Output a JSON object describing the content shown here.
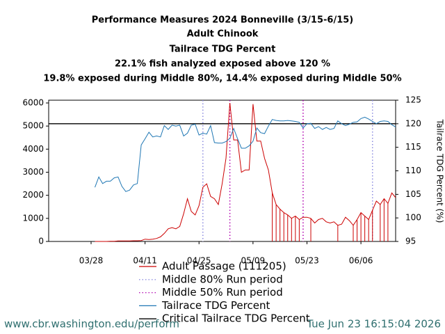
{
  "chart_data": {
    "type": "line",
    "title": [
      "Performance Measures 2024 Bonneville (3/15-6/15)",
      "Adult Chinook",
      "Tailrace TDG Percent",
      "22.1% fish analyzed exposed above 120 %",
      "19.8% exposed during Middle 80%, 14.4% exposed during Middle 50%"
    ],
    "y2_label": "Tailrace TDG Percent (%)",
    "x": [
      "03/29",
      "03/30",
      "03/31",
      "04/01",
      "04/02",
      "04/03",
      "04/04",
      "04/05",
      "04/06",
      "04/07",
      "04/08",
      "04/09",
      "04/10",
      "04/11",
      "04/12",
      "04/13",
      "04/14",
      "04/15",
      "04/16",
      "04/17",
      "04/18",
      "04/19",
      "04/20",
      "04/21",
      "04/22",
      "04/23",
      "04/24",
      "04/25",
      "04/26",
      "04/27",
      "04/28",
      "04/29",
      "04/30",
      "05/01",
      "05/02",
      "05/03",
      "05/04",
      "05/05",
      "05/06",
      "05/07",
      "05/08",
      "05/09",
      "05/10",
      "05/11",
      "05/12",
      "05/13",
      "05/14",
      "05/15",
      "05/16",
      "05/17",
      "05/18",
      "05/19",
      "05/20",
      "05/21",
      "05/22",
      "05/23",
      "05/24",
      "05/25",
      "05/26",
      "05/27",
      "05/28",
      "05/29",
      "05/30",
      "05/31",
      "06/01",
      "06/02",
      "06/03",
      "06/04",
      "06/05",
      "06/06",
      "06/07",
      "06/08",
      "06/09",
      "06/10",
      "06/11",
      "06/12",
      "06/13",
      "06/14",
      "06/15"
    ],
    "xlim": [
      "03/17",
      "06/15"
    ],
    "xticks": [
      "03/28",
      "04/11",
      "04/25",
      "05/09",
      "05/23",
      "06/06"
    ],
    "ylim": [
      0,
      6120
    ],
    "yticks": [
      0,
      1000,
      2000,
      3000,
      4000,
      5000,
      6000
    ],
    "y2lim": [
      95,
      125
    ],
    "y2ticks": [
      95,
      100,
      105,
      110,
      115,
      120,
      125
    ],
    "series": [
      {
        "name": "Adult Passage (111205)",
        "color": "#cc0000",
        "axis": "y",
        "values": [
          0,
          0,
          0,
          0,
          10,
          10,
          20,
          20,
          20,
          20,
          30,
          30,
          40,
          100,
          80,
          100,
          130,
          200,
          350,
          550,
          600,
          550,
          650,
          1200,
          1850,
          1300,
          1150,
          1550,
          2350,
          2500,
          1950,
          1850,
          1600,
          2500,
          3600,
          6000,
          4400,
          4400,
          3000,
          3100,
          3100,
          5950,
          4350,
          4350,
          3600,
          3100,
          2100,
          1600,
          1400,
          1250,
          1150,
          1000,
          1100,
          950,
          1050,
          1050,
          1000,
          800,
          950,
          1000,
          850,
          800,
          850,
          700,
          750,
          1050,
          900,
          700,
          950,
          1250,
          1100,
          950,
          1350,
          1750,
          1600,
          1850,
          1650,
          2100,
          1900
        ]
      },
      {
        "name": "Tailrace TDG Percent",
        "color": "#1f77b4",
        "axis": "y2",
        "values": [
          106.5,
          108.7,
          107.3,
          107.8,
          107.8,
          108.5,
          108.7,
          106.7,
          105.6,
          105.9,
          107,
          107.3,
          115.5,
          116.8,
          118.2,
          117.2,
          117.4,
          117.2,
          119.6,
          118.8,
          119.7,
          119.5,
          119.7,
          117.4,
          118,
          119.7,
          119.9,
          117.6,
          118,
          117.8,
          119.6,
          116,
          115.9,
          115.9,
          116.2,
          116.9,
          119,
          116.8,
          114.8,
          114.8,
          115.3,
          116.3,
          119.1,
          118.1,
          117.9,
          119.5,
          120.9,
          120.7,
          120.6,
          120.6,
          120.7,
          120.6,
          120.5,
          120.3,
          119.1,
          120,
          120.1,
          119,
          119.4,
          118.8,
          119.2,
          118.8,
          119,
          120.6,
          120,
          119.6,
          119.9,
          120.3,
          120.4,
          121.1,
          121.4,
          121,
          120.5,
          120,
          120.5,
          120.6,
          120.5,
          119.8,
          119.3
        ]
      }
    ],
    "run_periods": [
      {
        "name": "Middle 80% Run period",
        "color": "#8c8ce0",
        "x": [
          "04/26",
          "06/09"
        ]
      },
      {
        "name": "Middle 50% Run period",
        "color": "#b000b0",
        "x": [
          "05/03",
          "05/22"
        ]
      }
    ],
    "critical": {
      "name": "Critical Tailrace TDG Percent",
      "value": 120,
      "color": "#000000",
      "axis": "y2"
    }
  },
  "footer": {
    "left": "www.cbr.washington.edu/perform",
    "right": "Tue Jun 23 16:15:04 2026"
  }
}
